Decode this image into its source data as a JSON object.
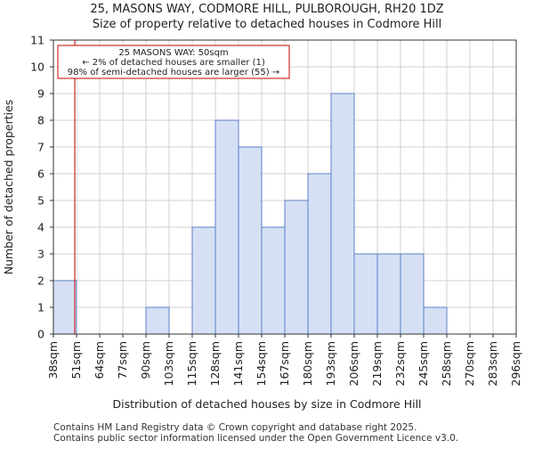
{
  "chart_data": {
    "type": "bar",
    "title": "25, MASONS WAY, CODMORE HILL, PULBOROUGH, RH20 1DZ",
    "subtitle": "Size of property relative to detached houses in Codmore Hill",
    "xlabel": "Distribution of detached houses by size in Codmore Hill",
    "ylabel": "Number of detached properties",
    "bin_edges": [
      "38sqm",
      "51sqm",
      "64sqm",
      "77sqm",
      "90sqm",
      "103sqm",
      "115sqm",
      "128sqm",
      "141sqm",
      "154sqm",
      "167sqm",
      "180sqm",
      "193sqm",
      "206sqm",
      "219sqm",
      "232sqm",
      "245sqm",
      "258sqm",
      "270sqm",
      "283sqm",
      "296sqm"
    ],
    "values": [
      2,
      0,
      0,
      0,
      1,
      0,
      4,
      8,
      7,
      4,
      5,
      6,
      9,
      3,
      3,
      3,
      1,
      0,
      0,
      0
    ],
    "ylim": [
      0,
      11
    ],
    "yticks": [
      0,
      1,
      2,
      3,
      4,
      5,
      6,
      7,
      8,
      9,
      10,
      11
    ],
    "grid": true,
    "bar_color": "#d6e0f5",
    "bar_edge_color": "#5b7fc7",
    "marker": {
      "value": 50,
      "color": "#cc0000",
      "annotation": [
        "25 MASONS WAY: 50sqm",
        "← 2% of detached houses are smaller (1)",
        "98% of semi-detached houses are larger (55) →"
      ]
    }
  },
  "footer": {
    "line1": "Contains HM Land Registry data © Crown copyright and database right 2025.",
    "line2": "Contains public sector information licensed under the Open Government Licence v3.0."
  }
}
